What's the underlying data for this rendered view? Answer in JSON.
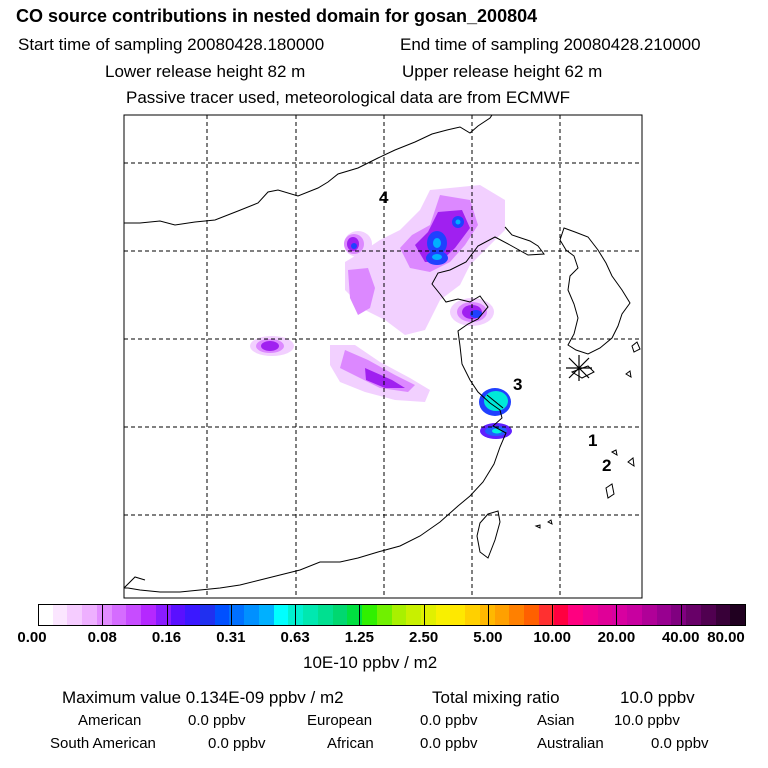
{
  "header": {
    "title": "CO  source contributions in nested domain for gosan_200804",
    "start_label": "Start time of sampling 20080428.180000",
    "end_label": "End time of sampling 20080428.210000",
    "lower_label": "Lower release height   82 m",
    "upper_label": "Upper release height   62 m",
    "info": "Passive tracer used, meteorological data are from ECMWF"
  },
  "map": {
    "labels": [
      "4",
      "3",
      "1",
      "2"
    ],
    "station_marker": "asterisk-marker"
  },
  "colorbar": {
    "ticks": [
      "0.00",
      "0.08",
      "0.16",
      "0.31",
      "0.63",
      "1.25",
      "2.50",
      "5.00",
      "10.00",
      "20.00",
      "40.00",
      "80.00"
    ],
    "colors": [
      "#ffffff",
      "#fbe6ff",
      "#f5ccff",
      "#eeb0ff",
      "#e28cff",
      "#d56cff",
      "#c74cff",
      "#b528ff",
      "#8a1cff",
      "#5a10ff",
      "#3b18ff",
      "#2030f0",
      "#0050ff",
      "#0070ff",
      "#0090ff",
      "#00b0ff",
      "#00ffff",
      "#00f0d0",
      "#00e8b0",
      "#00e090",
      "#00d870",
      "#00e040",
      "#30f000",
      "#70f000",
      "#a8f000",
      "#c8f000",
      "#e0f000",
      "#f8f000",
      "#ffe800",
      "#ffd000",
      "#ffb800",
      "#ffa000",
      "#ff8000",
      "#ff6000",
      "#ff3030",
      "#ff0040",
      "#ff0080",
      "#f00090",
      "#e00098",
      "#d800a0",
      "#c800a0",
      "#b00098",
      "#980090",
      "#800080",
      "#680068",
      "#500050",
      "#380038",
      "#200020"
    ],
    "units": "10E-10 ppbv / m2"
  },
  "footer": {
    "max_label": "Maximum value  0.134E-09 ppbv / m2",
    "total_label": "Total mixing ratio",
    "total_value": "10.0 ppbv",
    "regions": [
      {
        "name": "American",
        "value": "0.0 ppbv"
      },
      {
        "name": "European",
        "value": "0.0 ppbv"
      },
      {
        "name": "Asian",
        "value": "10.0 ppbv"
      },
      {
        "name": "South American",
        "value": "0.0 ppbv"
      },
      {
        "name": "African",
        "value": "0.0 ppbv"
      },
      {
        "name": "Australian",
        "value": "0.0 ppbv"
      }
    ]
  }
}
